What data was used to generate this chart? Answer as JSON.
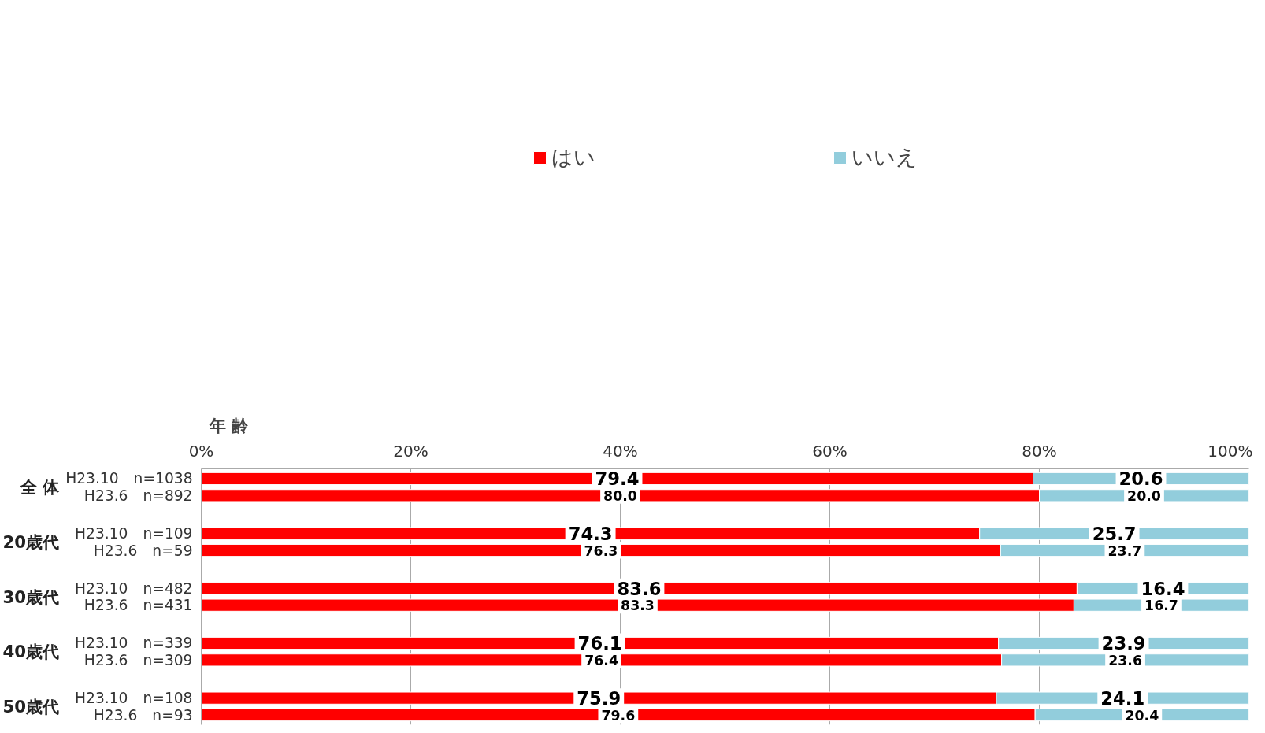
{
  "chart_data": {
    "type": "bar",
    "orientation": "horizontal",
    "stacked": true,
    "ylabel": "年 齢",
    "categories": [
      "H23.10　n=1038",
      "H23.6　n=892",
      "H23.10　n=109",
      "H23.6　n=59",
      "H23.10　n=482",
      "H23.6　n=431",
      "H23.10　n=339",
      "H23.6　n=309",
      "H23.10　n=108",
      "H23.6　n=93"
    ],
    "annotations": [
      "全 体",
      "20歳代",
      "30歳代",
      "40歳代",
      "50歳代"
    ],
    "series": [
      {
        "name": "はい",
        "color": "#ff0000",
        "values": [
          79.4,
          80.0,
          74.3,
          76.3,
          83.6,
          83.3,
          76.1,
          76.4,
          75.9,
          79.6
        ],
        "value_labels": [
          "79.4",
          "80.0",
          "74.3",
          "76.3",
          "83.6",
          "83.3",
          "76.1",
          "76.4",
          "75.9",
          "79.6"
        ]
      },
      {
        "name": "いいえ",
        "color": "#92cddc",
        "values": [
          20.6,
          20.0,
          25.7,
          23.7,
          16.4,
          16.7,
          23.9,
          23.6,
          24.1,
          20.4
        ],
        "value_labels": [
          "20.6",
          "20.0",
          "25.7",
          "23.7",
          "16.4",
          "16.7",
          "23.9",
          "23.6",
          "24.1",
          "20.4"
        ]
      }
    ],
    "xlim": [
      0,
      100
    ],
    "xticks": [
      {
        "value": 0,
        "label": "0%"
      },
      {
        "value": 20,
        "label": "20%"
      },
      {
        "value": 40,
        "label": "40%"
      },
      {
        "value": 60,
        "label": "60%"
      },
      {
        "value": 80,
        "label": "80%"
      },
      {
        "value": 100,
        "label": "100%"
      }
    ],
    "grid": "x",
    "legend": "top"
  }
}
